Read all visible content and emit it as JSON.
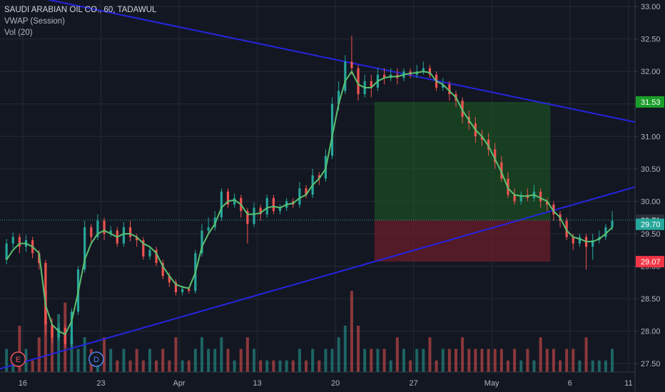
{
  "legend": {
    "symbol": "SAUDI ARABIAN OIL CO., 60, TADAWUL",
    "vwap": "VWAP (Session)",
    "volume": "Vol (20)"
  },
  "events": [
    {
      "label": "E",
      "color": "#f0525c"
    },
    {
      "label": "D",
      "color": "#4c83e6"
    }
  ],
  "colors": {
    "background": "#131722",
    "grid": "#242a36",
    "up": "#26a69a",
    "down": "#ef5350",
    "vwap": "#5bbf6f",
    "trendline": "#2525e0",
    "profit": "#1b5e20",
    "stop": "#7f1d2c",
    "tag_target": "#1b9e2a",
    "tag_last": "#26a69a",
    "tag_stop": "#f23645",
    "tag_price": "#2a2e39"
  },
  "chart_data": {
    "type": "candlestick",
    "instrument": "SAUDI ARABIAN OIL CO.",
    "interval": "60",
    "exchange": "TADAWUL",
    "y_range": [
      27.37,
      33.1
    ],
    "y_ticks": [
      "27.50",
      "28.00",
      "28.50",
      "29.00",
      "29.50",
      "30.00",
      "30.50",
      "31.00",
      "31.50",
      "32.00",
      "32.50",
      "33.00"
    ],
    "x_ticks": [
      {
        "label": "16",
        "i": 5
      },
      {
        "label": "23",
        "i": 29
      },
      {
        "label": "Apr",
        "i": 53
      },
      {
        "label": "13",
        "i": 77
      },
      {
        "label": "20",
        "i": 101
      },
      {
        "label": "27",
        "i": 125
      },
      {
        "label": "May",
        "i": 149
      },
      {
        "label": "6",
        "i": 173
      },
      {
        "label": "11",
        "i": 191
      }
    ],
    "x_domain": [
      -2,
      193
    ],
    "price_tags": [
      {
        "value": 31.53,
        "label": "31.53",
        "kind": "target"
      },
      {
        "value": 29.71,
        "label": "29.71",
        "kind": "price"
      },
      {
        "value": 29.7,
        "label": "29.70",
        "kind": "last"
      },
      {
        "value": 29.07,
        "label": "29.07",
        "kind": "stop"
      }
    ],
    "current_price": 29.71,
    "candles": [
      [
        29.1,
        29.35,
        29.42,
        29.03,
        2
      ],
      [
        29.35,
        29.45,
        29.52,
        29.28,
        1
      ],
      [
        29.45,
        29.3,
        29.5,
        29.2,
        4
      ],
      [
        29.3,
        29.4,
        29.48,
        29.22,
        2
      ],
      [
        29.4,
        29.2,
        29.45,
        29.12,
        1
      ],
      [
        29.2,
        29.05,
        29.25,
        28.95,
        3
      ],
      [
        29.05,
        28.1,
        29.1,
        27.95,
        7
      ],
      [
        28.1,
        27.9,
        28.2,
        27.82,
        4
      ],
      [
        27.9,
        28.05,
        28.12,
        27.85,
        5
      ],
      [
        28.05,
        27.8,
        28.1,
        27.75,
        6
      ],
      [
        27.8,
        28.3,
        28.35,
        27.75,
        3
      ],
      [
        28.3,
        28.95,
        29.0,
        28.25,
        2
      ],
      [
        28.95,
        29.6,
        29.7,
        28.9,
        3
      ],
      [
        29.6,
        29.45,
        29.65,
        29.35,
        2
      ],
      [
        29.45,
        29.7,
        29.8,
        29.4,
        1
      ],
      [
        29.7,
        29.5,
        29.75,
        29.4,
        3
      ],
      [
        29.5,
        29.55,
        29.62,
        29.45,
        2
      ],
      [
        29.55,
        29.35,
        29.6,
        29.3,
        1
      ],
      [
        29.35,
        29.6,
        29.68,
        29.3,
        2
      ],
      [
        29.6,
        29.45,
        29.7,
        29.38,
        1
      ],
      [
        29.45,
        29.4,
        29.5,
        29.3,
        2
      ],
      [
        29.4,
        29.15,
        29.45,
        29.1,
        1
      ],
      [
        29.15,
        29.25,
        29.3,
        29.1,
        2
      ],
      [
        29.25,
        29.05,
        29.3,
        29.0,
        1
      ],
      [
        29.05,
        28.85,
        29.1,
        28.8,
        2
      ],
      [
        28.85,
        28.75,
        28.9,
        28.68,
        1
      ],
      [
        28.75,
        28.6,
        28.8,
        28.55,
        3
      ],
      [
        28.6,
        28.65,
        28.7,
        28.55,
        1
      ],
      [
        28.65,
        28.62,
        28.68,
        28.58,
        1
      ],
      [
        28.62,
        29.2,
        29.25,
        28.58,
        2
      ],
      [
        29.2,
        29.55,
        29.65,
        29.15,
        3
      ],
      [
        29.55,
        29.6,
        29.75,
        29.5,
        2
      ],
      [
        29.6,
        29.75,
        29.85,
        29.55,
        2
      ],
      [
        29.75,
        30.15,
        30.2,
        29.7,
        3
      ],
      [
        30.15,
        29.95,
        30.2,
        29.9,
        2
      ],
      [
        29.95,
        30.05,
        30.12,
        29.9,
        1
      ],
      [
        30.05,
        29.85,
        30.1,
        29.75,
        2
      ],
      [
        29.85,
        29.65,
        29.9,
        29.35,
        3
      ],
      [
        29.65,
        29.9,
        29.98,
        29.6,
        2
      ],
      [
        29.9,
        29.8,
        29.95,
        29.7,
        1
      ],
      [
        29.8,
        30.05,
        30.1,
        29.75,
        1
      ],
      [
        30.05,
        29.85,
        30.1,
        29.8,
        1
      ],
      [
        29.85,
        29.9,
        29.95,
        29.8,
        1
      ],
      [
        29.9,
        30.0,
        30.05,
        29.85,
        1
      ],
      [
        30.0,
        29.95,
        30.05,
        29.9,
        1
      ],
      [
        29.95,
        30.2,
        30.3,
        29.9,
        2
      ],
      [
        30.2,
        30.1,
        30.25,
        30.05,
        1
      ],
      [
        30.1,
        30.4,
        30.5,
        30.05,
        2
      ],
      [
        30.4,
        30.35,
        30.45,
        30.25,
        1
      ],
      [
        30.35,
        30.7,
        30.8,
        30.3,
        2
      ],
      [
        30.7,
        31.5,
        31.6,
        30.65,
        2
      ],
      [
        31.5,
        31.7,
        31.85,
        31.4,
        3
      ],
      [
        31.7,
        32.15,
        32.25,
        31.65,
        4
      ],
      [
        32.15,
        32.05,
        32.55,
        31.95,
        7
      ],
      [
        32.05,
        31.65,
        32.1,
        31.55,
        4
      ],
      [
        31.65,
        31.85,
        31.95,
        31.6,
        2
      ],
      [
        31.85,
        31.75,
        31.95,
        31.6,
        2
      ],
      [
        31.75,
        31.95,
        32.05,
        31.7,
        2
      ],
      [
        31.95,
        31.9,
        32.05,
        31.8,
        2
      ],
      [
        31.9,
        31.95,
        32.05,
        31.85,
        1
      ],
      [
        31.95,
        31.9,
        32.05,
        31.8,
        3
      ],
      [
        31.9,
        32.0,
        32.05,
        31.85,
        2
      ],
      [
        32.0,
        31.95,
        32.05,
        31.9,
        1
      ],
      [
        31.95,
        32.0,
        32.1,
        31.9,
        2
      ],
      [
        32.0,
        32.05,
        32.15,
        31.95,
        2
      ],
      [
        32.05,
        31.95,
        32.1,
        31.9,
        3
      ],
      [
        31.95,
        31.75,
        32.0,
        31.7,
        1
      ],
      [
        31.75,
        31.8,
        31.9,
        31.7,
        2
      ],
      [
        31.8,
        31.65,
        31.85,
        31.55,
        2
      ],
      [
        31.65,
        31.55,
        31.7,
        31.45,
        2
      ],
      [
        31.55,
        31.3,
        31.6,
        31.2,
        3
      ],
      [
        31.3,
        31.2,
        31.4,
        31.1,
        2
      ],
      [
        31.2,
        31.0,
        31.3,
        30.9,
        2
      ],
      [
        31.0,
        30.95,
        31.1,
        30.85,
        2
      ],
      [
        30.95,
        30.8,
        31.05,
        30.7,
        2
      ],
      [
        30.8,
        30.6,
        30.9,
        30.5,
        2
      ],
      [
        30.6,
        30.35,
        30.7,
        30.3,
        2
      ],
      [
        30.35,
        30.1,
        30.45,
        30.05,
        1
      ],
      [
        30.1,
        30.0,
        30.2,
        29.95,
        2
      ],
      [
        30.0,
        30.1,
        30.15,
        29.95,
        1
      ],
      [
        30.1,
        30.05,
        30.2,
        30.0,
        2
      ],
      [
        30.05,
        30.15,
        30.25,
        30.0,
        1
      ],
      [
        30.15,
        30.0,
        30.2,
        29.9,
        3
      ],
      [
        30.0,
        29.95,
        30.05,
        29.85,
        2
      ],
      [
        29.95,
        29.8,
        30.0,
        29.7,
        2
      ],
      [
        29.8,
        29.7,
        29.85,
        29.6,
        1
      ],
      [
        29.7,
        29.45,
        29.75,
        29.4,
        2
      ],
      [
        29.45,
        29.35,
        29.5,
        29.25,
        2
      ],
      [
        29.35,
        29.45,
        29.5,
        29.3,
        1
      ],
      [
        29.45,
        29.3,
        29.5,
        28.95,
        3
      ],
      [
        29.3,
        29.4,
        29.5,
        29.1,
        1
      ],
      [
        29.4,
        29.45,
        29.55,
        29.35,
        1
      ],
      [
        29.45,
        29.6,
        29.65,
        29.4,
        1
      ],
      [
        29.6,
        29.7,
        29.85,
        29.55,
        2
      ]
    ],
    "vwap": [
      29.1,
      29.25,
      29.35,
      29.35,
      29.3,
      29.2,
      28.4,
      28.1,
      28.0,
      27.95,
      28.15,
      28.6,
      29.1,
      29.35,
      29.5,
      29.55,
      29.5,
      29.45,
      29.5,
      29.5,
      29.45,
      29.35,
      29.3,
      29.2,
      29.0,
      28.85,
      28.72,
      28.68,
      28.66,
      28.9,
      29.3,
      29.5,
      29.65,
      29.9,
      30.0,
      30.02,
      29.95,
      29.8,
      29.8,
      29.82,
      29.9,
      29.92,
      29.9,
      29.95,
      29.97,
      30.05,
      30.1,
      30.25,
      30.35,
      30.5,
      31.0,
      31.5,
      31.85,
      32.0,
      31.8,
      31.75,
      31.75,
      31.85,
      31.9,
      31.92,
      31.92,
      31.95,
      31.97,
      31.98,
      32.0,
      31.98,
      31.85,
      31.8,
      31.7,
      31.6,
      31.4,
      31.25,
      31.1,
      31.0,
      30.85,
      30.65,
      30.45,
      30.2,
      30.1,
      30.08,
      30.08,
      30.1,
      30.05,
      30.0,
      29.85,
      29.75,
      29.55,
      29.45,
      29.42,
      29.38,
      29.38,
      29.42,
      29.5,
      29.6
    ],
    "x_start": 0,
    "x_step": 2,
    "trendlines": [
      {
        "p1": [
          -2,
          33.26
        ],
        "p2": [
          193,
          31.22
        ],
        "color": "#2525e0"
      },
      {
        "p1": [
          -2,
          27.42
        ],
        "p2": [
          193,
          30.22
        ],
        "color": "#2525e0"
      }
    ],
    "position": {
      "entry": 29.71,
      "target": 31.53,
      "stop": 29.07,
      "x_from": 113,
      "x_to": 167
    },
    "volume_axis_max": 8
  }
}
